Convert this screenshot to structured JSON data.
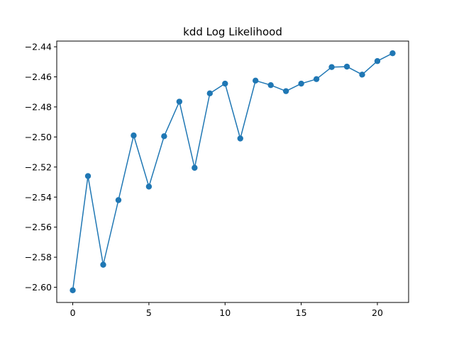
{
  "chart_data": {
    "type": "line",
    "title": "kdd Log Likelihood",
    "xlabel": "",
    "ylabel": "",
    "x": [
      0,
      1,
      2,
      3,
      4,
      5,
      6,
      7,
      8,
      9,
      10,
      11,
      12,
      13,
      14,
      15,
      16,
      17,
      18,
      19,
      20,
      21
    ],
    "series": [
      {
        "values": [
          -2.602,
          -2.526,
          -2.585,
          -2.542,
          -2.499,
          -2.533,
          -2.4995,
          -2.4765,
          -2.5205,
          -2.471,
          -2.4645,
          -2.501,
          -2.4625,
          -2.4655,
          -2.4695,
          -2.4645,
          -2.4615,
          -2.4535,
          -2.4532,
          -2.4585,
          -2.4495,
          -2.4443
        ],
        "color": "#1f77b4",
        "marker": "circle"
      }
    ],
    "xlim": [
      -1.05,
      22.05
    ],
    "ylim": [
      -2.6101,
      -2.4362
    ],
    "x_ticks": [
      0,
      5,
      10,
      15,
      20
    ],
    "x_tick_labels": [
      "0",
      "5",
      "10",
      "15",
      "20"
    ],
    "y_ticks": [
      -2.6,
      -2.58,
      -2.56,
      -2.54,
      -2.52,
      -2.5,
      -2.48,
      -2.46,
      -2.44
    ],
    "y_tick_labels": [
      "−2.60",
      "−2.58",
      "−2.56",
      "−2.54",
      "−2.52",
      "−2.50",
      "−2.48",
      "−2.46",
      "−2.44"
    ],
    "grid": false,
    "legend": "none"
  }
}
